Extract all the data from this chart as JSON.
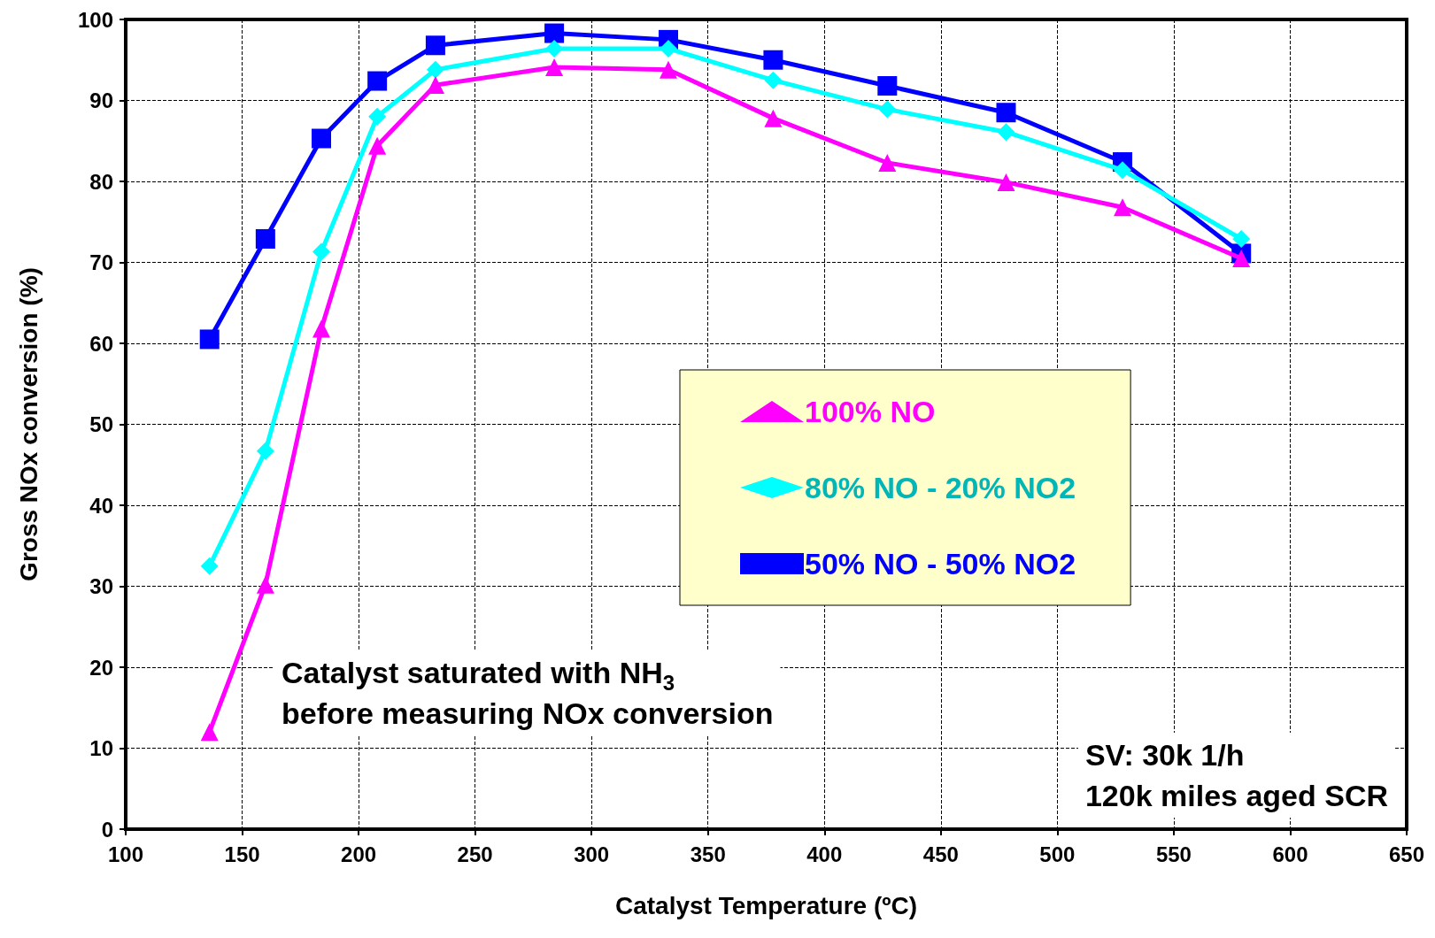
{
  "chart_data": {
    "type": "line",
    "xlabel": "Catalyst Temperature (ºC)",
    "ylabel": "Gross NOx conversion (%)",
    "xlim": [
      100,
      650
    ],
    "xticks": [
      100,
      150,
      200,
      250,
      300,
      350,
      400,
      450,
      500,
      550,
      600,
      650
    ],
    "ylim": [
      0,
      100
    ],
    "yticks": [
      0,
      10,
      20,
      30,
      40,
      50,
      60,
      70,
      80,
      90,
      100
    ],
    "grid": true,
    "legend": "right",
    "line_style": "solid",
    "x": [
      136,
      160,
      184,
      208,
      233,
      284,
      333,
      378,
      427,
      478,
      528,
      579
    ],
    "series": [
      {
        "name": "100% NO",
        "color": "#ff00ff",
        "marker": "triangle",
        "values": [
          12,
          30.2,
          61.8,
          84.4,
          91.9,
          94.1,
          93.8,
          87.8,
          82.3,
          79.9,
          76.8,
          70.5
        ]
      },
      {
        "name": "80% NO - 20% NO2",
        "color": "#00ffff",
        "marker": "diamond",
        "values": [
          32.5,
          46.7,
          71.3,
          88.0,
          93.8,
          96.4,
          96.4,
          92.5,
          88.9,
          86.1,
          81.4,
          72.9
        ]
      },
      {
        "name": "50% NO - 50% NO2",
        "color": "#0000ff",
        "marker": "square",
        "values": [
          60.5,
          72.9,
          85.3,
          92.4,
          96.8,
          98.3,
          97.5,
          95.0,
          91.8,
          88.5,
          82.4,
          71.1
        ]
      }
    ],
    "annotations": [
      "Catalyst saturated with NH$_{3}$\nbefore measuring NOx conversion",
      "SV: 30k 1/h\n120k miles aged SCR"
    ]
  }
}
